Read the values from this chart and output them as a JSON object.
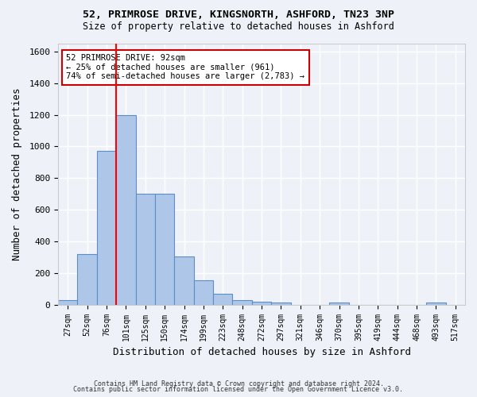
{
  "title_line1": "52, PRIMROSE DRIVE, KINGSNORTH, ASHFORD, TN23 3NP",
  "title_line2": "Size of property relative to detached houses in Ashford",
  "xlabel": "Distribution of detached houses by size in Ashford",
  "ylabel": "Number of detached properties",
  "bar_values": [
    30,
    320,
    970,
    1200,
    700,
    700,
    305,
    155,
    70,
    30,
    20,
    15,
    0,
    0,
    15,
    0,
    0,
    0,
    0,
    15,
    0
  ],
  "bar_labels": [
    "27sqm",
    "52sqm",
    "76sqm",
    "101sqm",
    "125sqm",
    "150sqm",
    "174sqm",
    "199sqm",
    "223sqm",
    "248sqm",
    "272sqm",
    "297sqm",
    "321sqm",
    "346sqm",
    "370sqm",
    "395sqm",
    "419sqm",
    "444sqm",
    "468sqm",
    "493sqm",
    "517sqm"
  ],
  "bar_color": "#aec6e8",
  "bar_edge_color": "#5b8ec9",
  "ylim": [
    0,
    1650
  ],
  "yticks": [
    0,
    200,
    400,
    600,
    800,
    1000,
    1200,
    1400,
    1600
  ],
  "red_line_x": 2.5,
  "annotation_text": "52 PRIMROSE DRIVE: 92sqm\n← 25% of detached houses are smaller (961)\n74% of semi-detached houses are larger (2,783) →",
  "annotation_box_color": "#ffffff",
  "annotation_box_edge_color": "#cc0000",
  "footer_line1": "Contains HM Land Registry data © Crown copyright and database right 2024.",
  "footer_line2": "Contains public sector information licensed under the Open Government Licence v3.0.",
  "background_color": "#eef2f8",
  "grid_color": "#ffffff"
}
